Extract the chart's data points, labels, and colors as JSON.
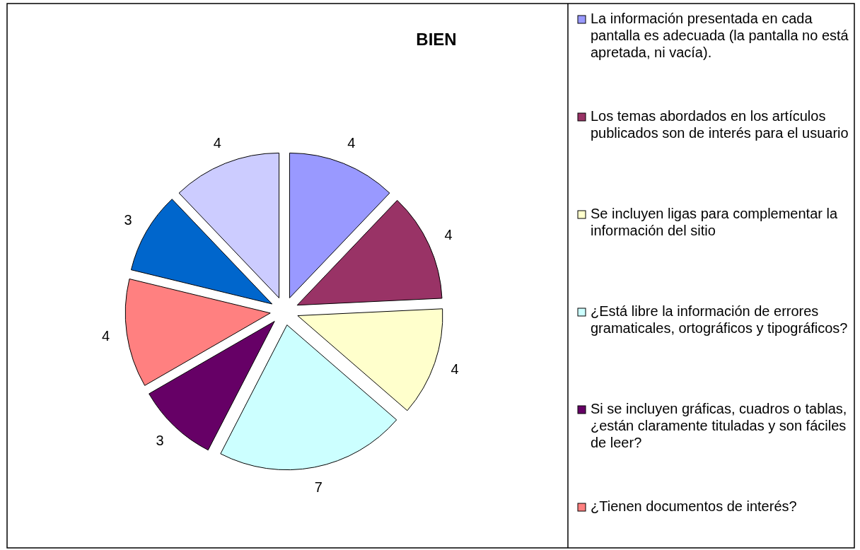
{
  "chart_data": {
    "type": "pie",
    "title": "BIEN",
    "categories": [
      "La información presentada en cada pantalla es adecuada (la pantalla no está apretada, ni vacía).",
      "Los temas abordados en los artículos publicados son de interés para el usuario",
      "Se incluyen ligas para complementar la información del sitio",
      "¿Está libre la información de errores gramaticales, ortográficos y tipográficos?",
      "Si se incluyen gráficas, cuadros o tablas, ¿están claramente tituladas y son fáciles de leer?",
      "¿Tienen documentos de interés?",
      null,
      null
    ],
    "values": [
      4,
      4,
      4,
      7,
      3,
      4,
      3,
      4
    ],
    "colors": [
      "#9999ff",
      "#993366",
      "#ffffcc",
      "#ccffff",
      "#660066",
      "#ff8080",
      "#0066cc",
      "#ccccff"
    ],
    "data_labels": true,
    "legend": "right"
  }
}
